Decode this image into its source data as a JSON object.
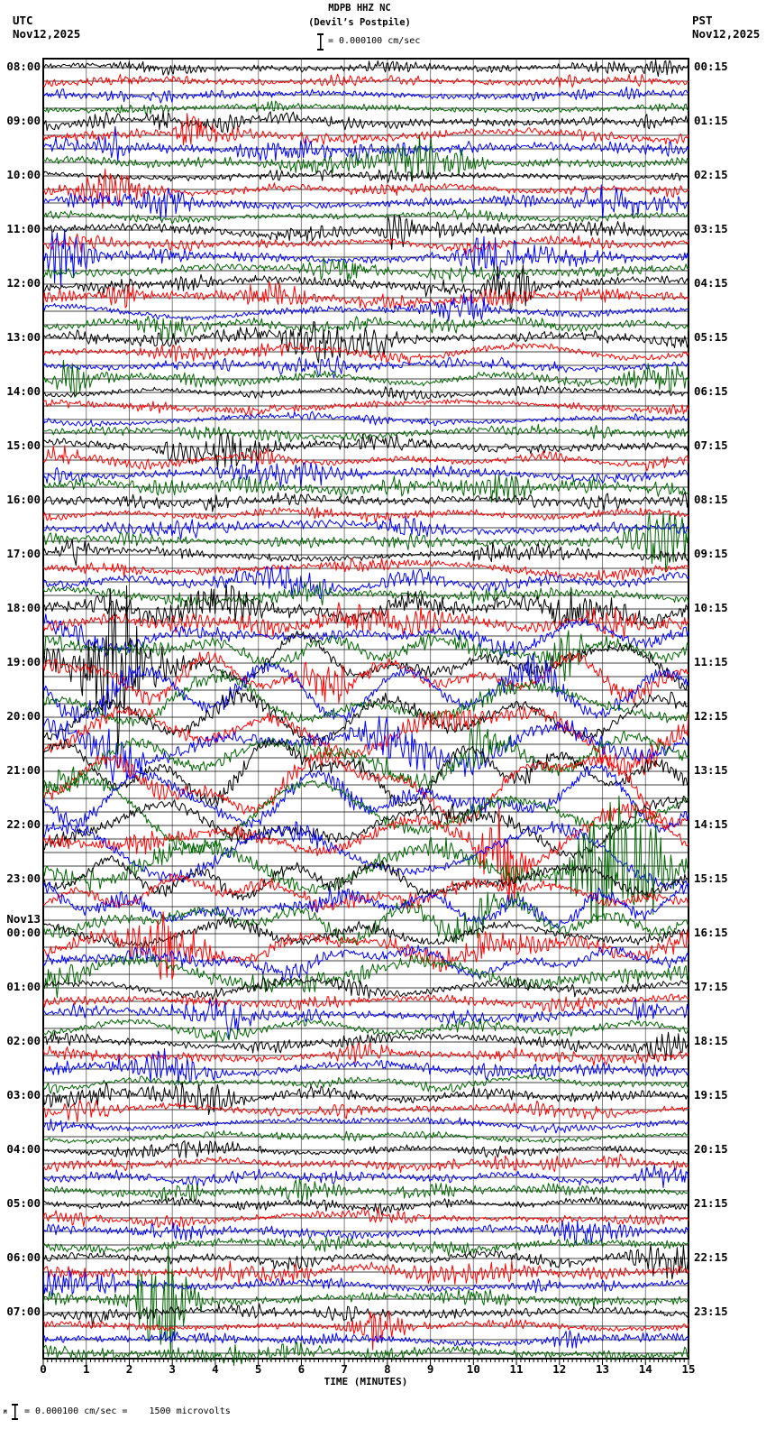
{
  "header": {
    "title": "MDPB HHZ NC",
    "subtitle": "(Devil’s Postpile)",
    "scale_label": "= 0.000100 cm/sec",
    "left_timezone": "UTC",
    "left_date": "Nov12,2025",
    "right_timezone": "PST",
    "right_date": "Nov12,2025"
  },
  "x_axis": {
    "label": "TIME (MINUTES)",
    "tick_labels": [
      "0",
      "1",
      "2",
      "3",
      "4",
      "5",
      "6",
      "7",
      "8",
      "9",
      "10",
      "11",
      "12",
      "13",
      "14",
      "15"
    ],
    "minor_ticks_per_major": 10
  },
  "footer": {
    "marker": "M",
    "scale_note": "= 0.000100 cm/sec =    1500 microvolts"
  },
  "chart_data": {
    "type": "line",
    "subtype": "helicorder-seismogram",
    "station": "MDPB HHZ NC",
    "station_location": "Devil’s Postpile",
    "start_date_utc": "Nov12,2025",
    "minutes_per_line": 15,
    "x_range_minutes": [
      0,
      15
    ],
    "lines_per_hour_row": 4,
    "trace_colors": [
      "#000000",
      "#ff0000",
      "#0000ff",
      "#006600"
    ],
    "grid_color": "#808080",
    "amplitude_note": "amp = high-frequency noise amplitude (px), wander = low-frequency drift amplitude (px); one trace band = 15 px",
    "rows": [
      {
        "utc": "08:00",
        "pst": "00:15",
        "amp": 5,
        "wander": 3
      },
      {
        "utc": "09:00",
        "pst": "01:15",
        "amp": 7,
        "wander": 5
      },
      {
        "utc": "10:00",
        "pst": "02:15",
        "amp": 6,
        "wander": 4
      },
      {
        "utc": "11:00",
        "pst": "03:15",
        "amp": 6,
        "wander": 5
      },
      {
        "utc": "12:00",
        "pst": "04:15",
        "amp": 7,
        "wander": 8
      },
      {
        "utc": "13:00",
        "pst": "05:15",
        "amp": 6,
        "wander": 7
      },
      {
        "utc": "14:00",
        "pst": "06:15",
        "amp": 6,
        "wander": 5
      },
      {
        "utc": "15:00",
        "pst": "07:15",
        "amp": 7,
        "wander": 6
      },
      {
        "utc": "16:00",
        "pst": "08:15",
        "amp": 7,
        "wander": 6
      },
      {
        "utc": "17:00",
        "pst": "09:15",
        "amp": 7,
        "wander": 9
      },
      {
        "utc": "18:00",
        "pst": "10:15",
        "amp": 8,
        "wander": 18
      },
      {
        "utc": "19:00",
        "pst": "11:15",
        "amp": 8,
        "wander": 32
      },
      {
        "utc": "20:00",
        "pst": "12:15",
        "amp": 8,
        "wander": 42
      },
      {
        "utc": "21:00",
        "pst": "13:15",
        "amp": 8,
        "wander": 45
      },
      {
        "utc": "22:00",
        "pst": "14:15",
        "amp": 8,
        "wander": 38
      },
      {
        "utc": "23:00",
        "pst": "15:15",
        "amp": 7,
        "wander": 26
      },
      {
        "utc": "00:00",
        "pst": "16:15",
        "date_label": "Nov13",
        "amp": 7,
        "wander": 18
      },
      {
        "utc": "01:00",
        "pst": "17:15",
        "amp": 7,
        "wander": 12
      },
      {
        "utc": "02:00",
        "pst": "18:15",
        "amp": 6,
        "wander": 7
      },
      {
        "utc": "03:00",
        "pst": "19:15",
        "amp": 6,
        "wander": 6
      },
      {
        "utc": "04:00",
        "pst": "20:15",
        "amp": 6,
        "wander": 5
      },
      {
        "utc": "05:00",
        "pst": "21:15",
        "amp": 7,
        "wander": 5
      },
      {
        "utc": "06:00",
        "pst": "22:15",
        "amp": 7,
        "wander": 6
      },
      {
        "utc": "07:00",
        "pst": "23:15",
        "amp": 6,
        "wander": 5
      }
    ]
  }
}
